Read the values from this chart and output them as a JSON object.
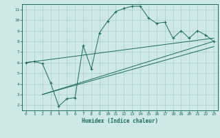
{
  "xlabel": "Humidex (Indice chaleur)",
  "bg_color": "#cde8e5",
  "line_color": "#1a6b5a",
  "grid_color": "#a8ccc8",
  "xlim": [
    -0.5,
    23.5
  ],
  "ylim": [
    1.5,
    11.5
  ],
  "xticks": [
    0,
    1,
    2,
    3,
    4,
    5,
    6,
    7,
    8,
    9,
    10,
    11,
    12,
    13,
    14,
    15,
    16,
    17,
    18,
    19,
    20,
    21,
    22,
    23
  ],
  "yticks": [
    2,
    3,
    4,
    5,
    6,
    7,
    8,
    9,
    10,
    11
  ],
  "main_x": [
    0,
    1,
    2,
    3,
    4,
    5,
    6,
    7,
    8,
    9,
    10,
    11,
    12,
    13,
    14,
    15,
    16,
    17,
    18,
    19,
    20,
    21,
    22,
    23
  ],
  "main_y": [
    6.0,
    6.1,
    5.9,
    4.1,
    1.9,
    2.6,
    2.7,
    7.6,
    5.4,
    8.8,
    9.9,
    10.8,
    11.1,
    11.3,
    11.3,
    10.2,
    9.7,
    9.8,
    8.3,
    9.0,
    8.3,
    9.0,
    8.6,
    8.0
  ],
  "line1_x": [
    0,
    23
  ],
  "line1_y": [
    6.0,
    8.3
  ],
  "line2_x": [
    2,
    23
  ],
  "line2_y": [
    3.0,
    8.0
  ],
  "line3_x": [
    2,
    23
  ],
  "line3_y": [
    3.0,
    7.5
  ]
}
